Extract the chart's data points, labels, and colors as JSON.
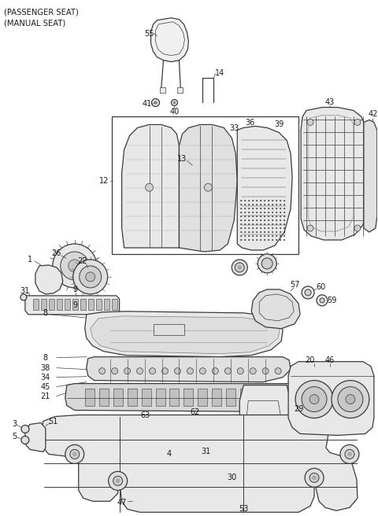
{
  "header_text": "(PASSENGER SEAT)\n(MANUAL SEAT)",
  "bg_color": "#ffffff",
  "lc": "#3a3a3a",
  "tc": "#1a1a1a",
  "figsize": [
    4.8,
    6.56
  ],
  "dpi": 100,
  "label_fs": 7.0
}
